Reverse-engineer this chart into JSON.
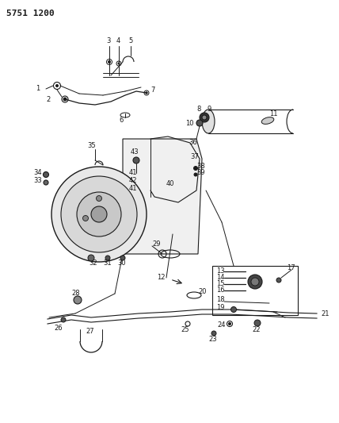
{
  "title": "5751 1200",
  "bg_color": "#ffffff",
  "line_color": "#1a1a1a",
  "title_fontsize": 8,
  "label_fontsize": 6,
  "fig_width": 4.28,
  "fig_height": 5.33,
  "dpi": 100
}
